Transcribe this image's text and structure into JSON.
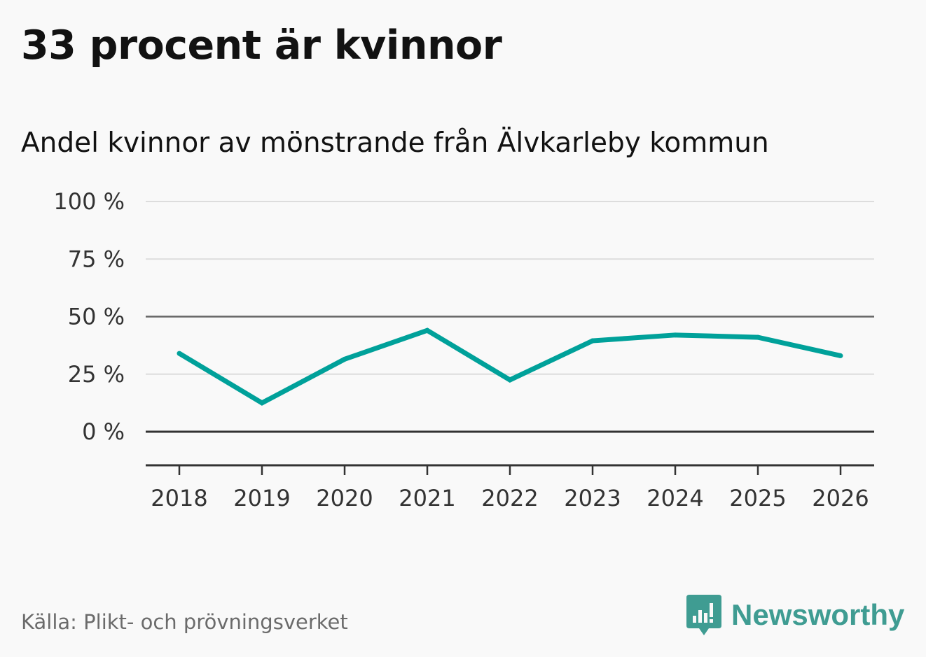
{
  "title": "33 procent är kvinnor",
  "subtitle": "Andel kvinnor av mönstrande från Älvkarleby kommun",
  "source": "Källa: Plikt- och prövningsverket",
  "brand": {
    "name": "Newsworthy",
    "icon": "newsworthy-logo-icon",
    "color": "#3f9c92"
  },
  "colors": {
    "line": "#00a19a",
    "grid": "#dddddd",
    "axis": "#333333",
    "background": "#f9f9f9"
  },
  "chart_data": {
    "type": "line",
    "title": "Andel kvinnor av mönstrande från Älvkarleby kommun",
    "xlabel": "",
    "ylabel": "",
    "categories": [
      "2018",
      "2019",
      "2020",
      "2021",
      "2022",
      "2023",
      "2024",
      "2025",
      "2026"
    ],
    "series": [
      {
        "name": "Andel kvinnor",
        "values": [
          34,
          12.5,
          31.5,
          44,
          22.5,
          39.5,
          42,
          41,
          33
        ]
      }
    ],
    "ylim": [
      -15,
      100
    ],
    "yticks": [
      0,
      25,
      50,
      75,
      100
    ],
    "ytick_labels": [
      "0 %",
      "25 %",
      "50 %",
      "75 %",
      "100 %"
    ],
    "highlight_lines": [
      0,
      50
    ],
    "grid": true,
    "legend": "none"
  }
}
